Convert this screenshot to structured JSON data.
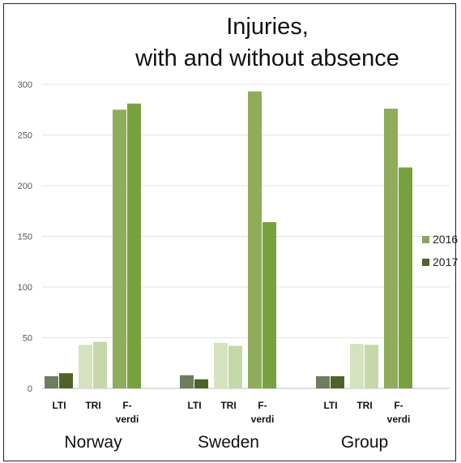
{
  "chart_data": {
    "type": "bar",
    "title_line1": "Injuries,",
    "title_line2": "with and without absence",
    "ylim": [
      0,
      300
    ],
    "yticks": [
      0,
      50,
      100,
      150,
      200,
      250,
      300
    ],
    "grid": true,
    "legend_position": "right",
    "categories": [
      "LTI",
      "TRI",
      "F-verdi"
    ],
    "category_labels": [
      [
        "LTI"
      ],
      [
        "TRI"
      ],
      [
        "F-",
        "verdi"
      ]
    ],
    "series_names": [
      "2016",
      "2017"
    ],
    "legend_colors": [
      "#8aa368",
      "#4e6328"
    ],
    "groups": [
      {
        "name": "Norway",
        "values": [
          [
            12,
            15
          ],
          [
            43,
            46
          ],
          [
            275,
            281
          ]
        ]
      },
      {
        "name": "Sweden",
        "values": [
          [
            13,
            9
          ],
          [
            45,
            42
          ],
          [
            293,
            164
          ]
        ]
      },
      {
        "name": "Group",
        "values": [
          [
            12,
            12
          ],
          [
            44,
            43
          ],
          [
            276,
            218
          ]
        ]
      }
    ],
    "category_colors": [
      [
        "#6f7d5e",
        "#4e6328"
      ],
      [
        "#d6e2bf",
        "#c5d8a8"
      ],
      [
        "#8eac5a",
        "#79a03f"
      ]
    ]
  }
}
